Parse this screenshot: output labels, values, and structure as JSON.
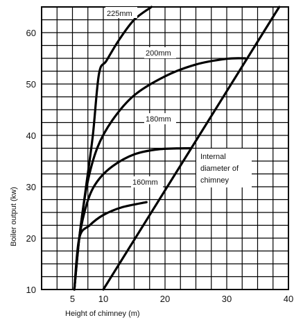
{
  "chart_data": {
    "type": "line",
    "title": "",
    "xlabel": "Height of chimney (m)",
    "ylabel": "Boiler output (kw)",
    "xlim": [
      0,
      40
    ],
    "ylim": [
      10,
      65
    ],
    "x_ticks": [
      5,
      10,
      20,
      30,
      40
    ],
    "y_ticks": [
      10,
      20,
      30,
      40,
      50,
      60
    ],
    "grid": true,
    "annotations": [
      "Internal",
      "diameter of",
      "chimney"
    ],
    "series": [
      {
        "name": "225mm",
        "x": [
          5.3,
          6.1,
          7.2,
          8.3,
          9.3,
          10.5,
          12.5,
          15,
          17.8
        ],
        "y": [
          10,
          20,
          30,
          40,
          52,
          54.5,
          58.5,
          62.5,
          65
        ]
      },
      {
        "name": "200mm",
        "x": [
          5.3,
          6.1,
          7.3,
          9,
          11.5,
          15,
          20,
          25,
          30,
          33
        ],
        "y": [
          10,
          20,
          30,
          37.5,
          43,
          47.8,
          51.5,
          53.8,
          54.9,
          55
        ]
      },
      {
        "name": "180mm",
        "x": [
          5.3,
          6.1,
          7.4,
          9,
          11.5,
          15,
          19,
          24
        ],
        "y": [
          10,
          20,
          27,
          31,
          34,
          36.3,
          37.3,
          37.5
        ]
      },
      {
        "name": "160mm",
        "x": [
          5.3,
          6.1,
          7.8,
          10,
          13,
          17
        ],
        "y": [
          10,
          20,
          22.5,
          24.5,
          26,
          27
        ]
      },
      {
        "name": "Internal diameter of chimney",
        "x": [
          10,
          38.5
        ],
        "y": [
          10,
          65
        ]
      }
    ]
  }
}
